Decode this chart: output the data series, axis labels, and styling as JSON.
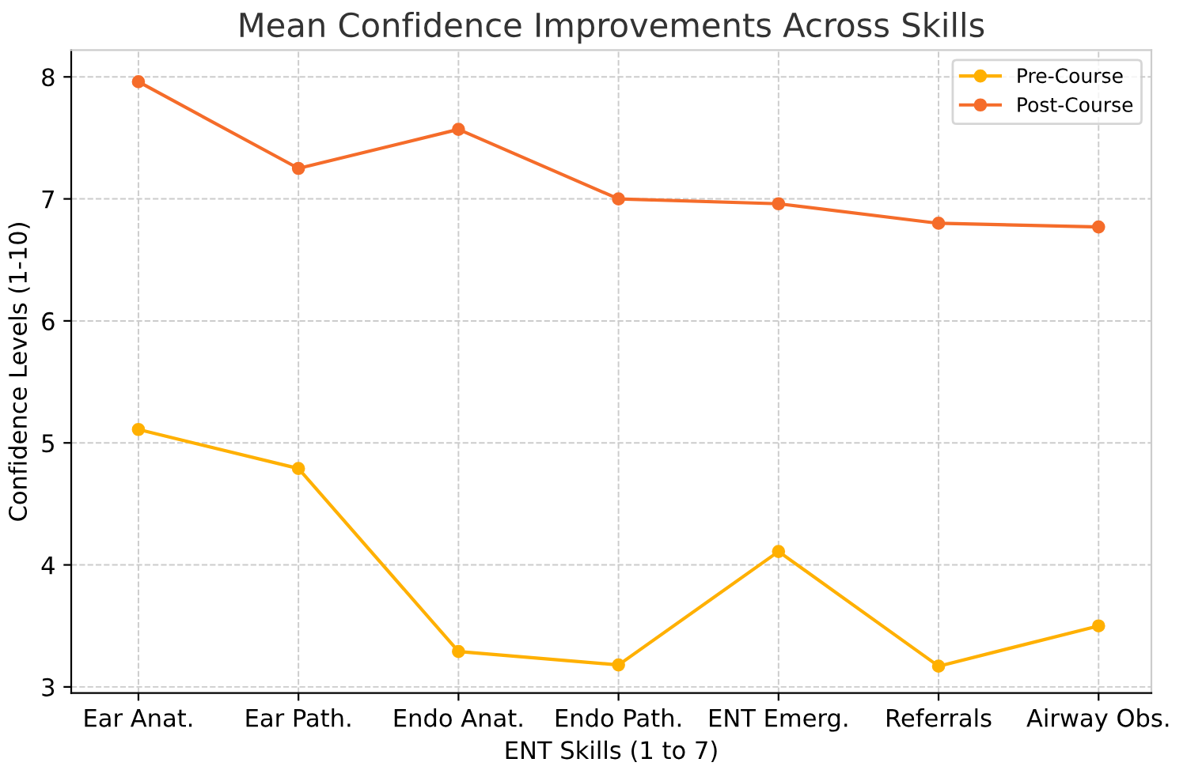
{
  "chart_data": {
    "type": "line",
    "title": "Mean Confidence Improvements Across Skills",
    "xlabel": "ENT Skills (1 to 7)",
    "ylabel": "Confidence Levels (1-10)",
    "categories": [
      "Ear Anat.",
      "Ear Path.",
      "Endo Anat.",
      "Endo Path.",
      "ENT Emerg.",
      "Referrals",
      "Airway Obs."
    ],
    "series": [
      {
        "name": "Pre-Course",
        "color": "#ffb000",
        "values": [
          5.11,
          4.79,
          3.29,
          3.18,
          4.11,
          3.17,
          3.5
        ]
      },
      {
        "name": "Post-Course",
        "color": "#f56c2a",
        "values": [
          7.96,
          7.25,
          7.57,
          7.0,
          6.96,
          6.8,
          6.77
        ]
      }
    ],
    "ylim": [
      2.95,
      8.22
    ],
    "yticks": [
      3,
      4,
      5,
      6,
      7,
      8
    ],
    "grid": true,
    "legend": "top right",
    "marker": "circle",
    "line_style": "solid"
  }
}
